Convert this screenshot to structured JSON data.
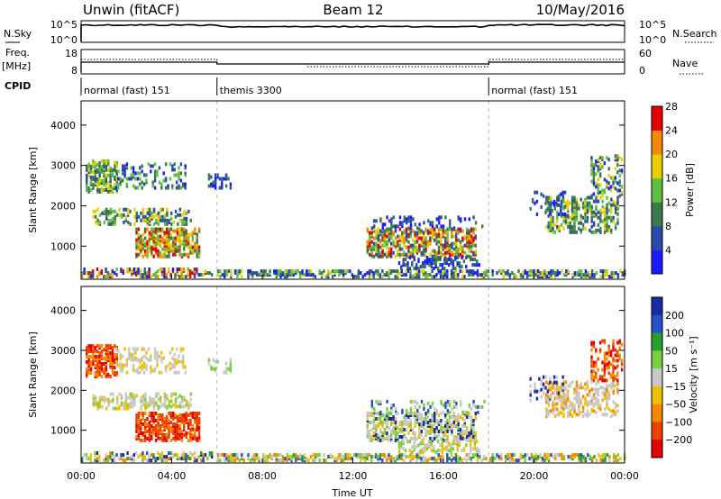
{
  "header": {
    "station": "Unwin (fitACF)",
    "beam": "Beam 12",
    "date": "10/May/2016"
  },
  "strip": {
    "nsky_label": "N.Sky",
    "nsky_ticks": [
      "10^5",
      "10^0"
    ],
    "nsearch_label": "N.Search",
    "nsearch_ticks": [
      "10^5",
      "10^0"
    ],
    "freq_label": "Freq.",
    "freq_unit": "[MHz]",
    "freq_ticks": [
      "18",
      "8"
    ],
    "nave_label": "Nave",
    "nave_ticks": [
      "60",
      "0"
    ],
    "cpid_label": "CPID",
    "modes": [
      {
        "label": "normal (fast) 151",
        "start_hour": 0,
        "end_hour": 6
      },
      {
        "label": "themis 3300",
        "start_hour": 6,
        "end_hour": 18
      },
      {
        "label": "normal (fast) 151",
        "start_hour": 18,
        "end_hour": 24
      }
    ]
  },
  "chart_data": [
    {
      "type": "heatmap",
      "name": "power",
      "ylabel": "Slant Range [km]",
      "x_ticks": [
        "00:00",
        "04:00",
        "08:00",
        "12:00",
        "16:00",
        "20:00",
        "00:00"
      ],
      "y_ticks": [
        "1000",
        "2000",
        "3000",
        "4000"
      ],
      "xlim_hours": [
        0,
        24
      ],
      "ylim_km": [
        180,
        4600
      ],
      "colorbar": {
        "label": "Power [dB]",
        "ticks": [
          "4",
          "8",
          "12",
          "16",
          "20",
          "24",
          "28"
        ],
        "colors": [
          "#1b1bff",
          "#2a4aa8",
          "#3a7a4a",
          "#5cc040",
          "#e8d000",
          "#f58a00",
          "#e60000"
        ]
      }
    },
    {
      "type": "heatmap",
      "name": "velocity",
      "ylabel": "Slant Range [km]",
      "xlabel": "Time UT",
      "x_ticks": [
        "00:00",
        "04:00",
        "08:00",
        "12:00",
        "16:00",
        "20:00",
        "00:00"
      ],
      "y_ticks": [
        "1000",
        "2000",
        "3000",
        "4000"
      ],
      "xlim_hours": [
        0,
        24
      ],
      "ylim_km": [
        180,
        4600
      ],
      "colorbar": {
        "label": "Velocity [m s⁻¹]",
        "ticks": [
          "200",
          "100",
          "50",
          "15",
          "−15",
          "−50",
          "−100",
          "−200"
        ],
        "colors": [
          "#1a2aa0",
          "#2850c8",
          "#28a030",
          "#7ad040",
          "#c8c8c8",
          "#f0c000",
          "#f58a00",
          "#f04000",
          "#e60000"
        ]
      }
    }
  ]
}
